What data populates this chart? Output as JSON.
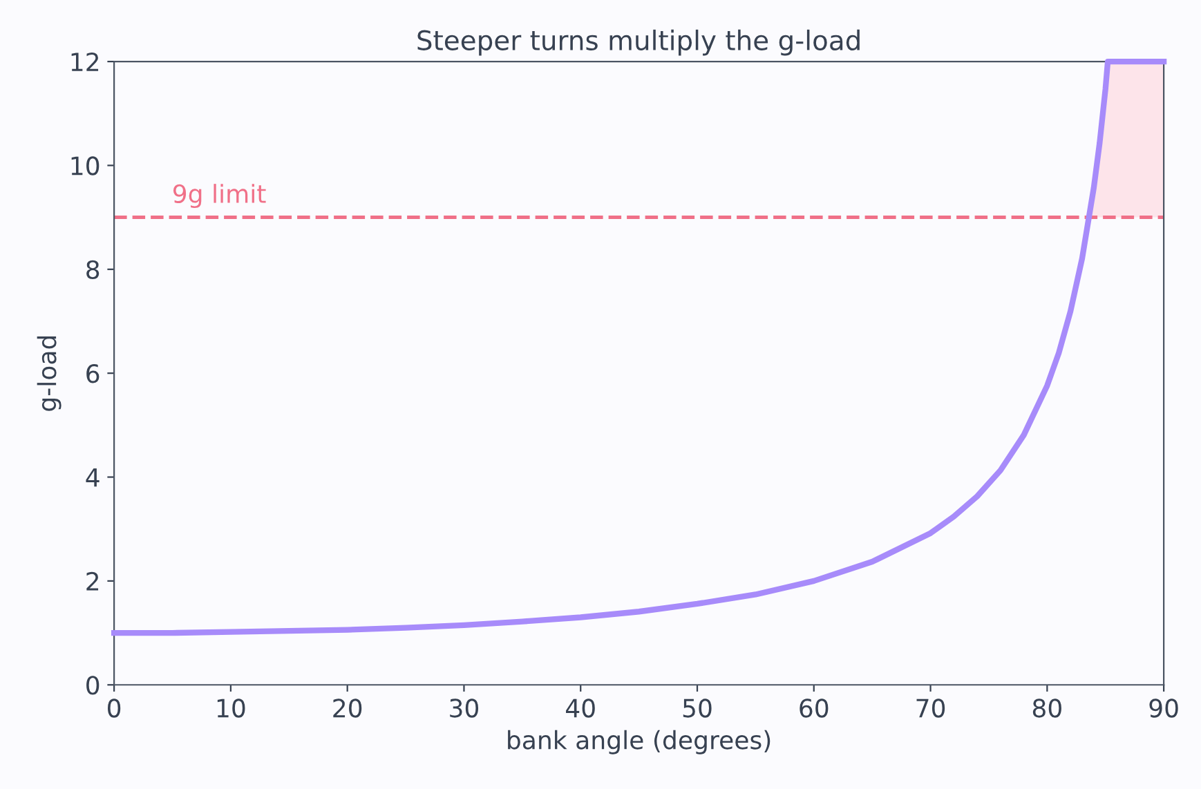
{
  "chart_data": {
    "type": "line",
    "title": "Steeper turns multiply the g-load",
    "xlabel": "bank angle (degrees)",
    "ylabel": "g-load",
    "xlim": [
      0,
      90
    ],
    "ylim": [
      0,
      12
    ],
    "xticks": [
      0,
      10,
      20,
      30,
      40,
      50,
      60,
      70,
      80,
      90
    ],
    "yticks": [
      0,
      2,
      4,
      6,
      8,
      10,
      12
    ],
    "grid": false,
    "series": [
      {
        "type": "area",
        "color": "#fde4ea",
        "x": [
          83.6,
          84,
          84.5,
          85,
          85.2,
          90
        ],
        "values": [
          9,
          9.57,
          10.43,
          11.47,
          12,
          12
        ]
      },
      {
        "color": "#a78bfa",
        "x": [
          0,
          5,
          10,
          15,
          20,
          25,
          30,
          35,
          40,
          45,
          50,
          55,
          60,
          65,
          70,
          72,
          74,
          76,
          78,
          80,
          81,
          82,
          83,
          84,
          84.5,
          85,
          85.2,
          90
        ],
        "values": [
          1,
          1.0,
          1.02,
          1.04,
          1.06,
          1.1,
          1.15,
          1.22,
          1.3,
          1.41,
          1.56,
          1.74,
          2,
          2.37,
          2.92,
          3.24,
          3.63,
          4.13,
          4.81,
          5.76,
          6.39,
          7.19,
          8.21,
          9.57,
          10.43,
          11.47,
          12,
          12
        ]
      }
    ],
    "ref_lines": [
      {
        "axis": "y",
        "value": 9,
        "label": "9g limit",
        "color": "#f07088",
        "line_style": "dashed"
      }
    ]
  }
}
